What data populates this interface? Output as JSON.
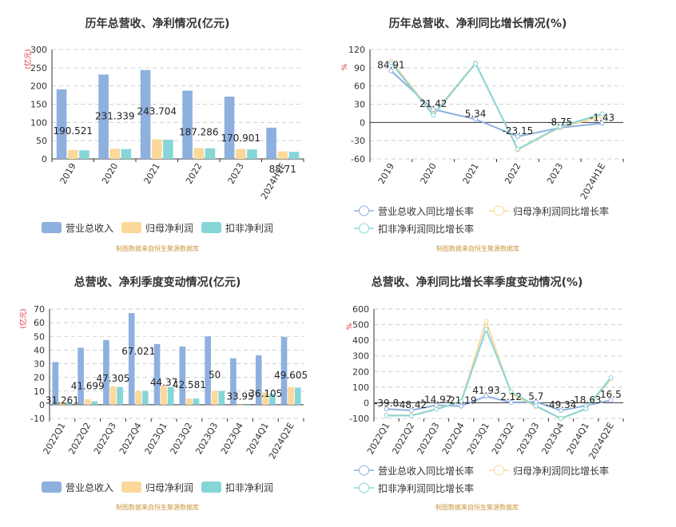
{
  "chart_data": [
    {
      "type": "bar",
      "title": "历年总营收、净利情况(亿元)",
      "ylabel": "(亿元)",
      "ylim": [
        0,
        300
      ],
      "yticks": [
        0,
        50,
        100,
        150,
        200,
        250,
        300
      ],
      "categories": [
        "2019",
        "2020",
        "2021",
        "2022",
        "2023",
        "2024H1E"
      ],
      "series": [
        {
          "name": "营业总收入",
          "color": "#8eb0de",
          "values": [
            190.521,
            231.339,
            243.704,
            187.286,
            170.901,
            85.71
          ]
        },
        {
          "name": "归母净利润",
          "color": "#fcd89b",
          "values": [
            24.5,
            28.0,
            54.0,
            30.0,
            27.0,
            20.5
          ]
        },
        {
          "name": "扣非净利润",
          "color": "#86d6d8",
          "values": [
            23.5,
            27.0,
            52.5,
            29.0,
            26.0,
            19.5
          ]
        }
      ],
      "data_labels": [
        "190.521",
        "231.339",
        "243.704",
        "187.286",
        "170.901",
        "85.71"
      ],
      "grid": true,
      "legend": "bottom",
      "source": "制图数据来自恒生聚源数据库"
    },
    {
      "type": "line",
      "title": "历年总营收、净利同比增长情况(%)",
      "ylabel": "%",
      "ylim": [
        -60,
        120
      ],
      "yticks": [
        -60,
        -30,
        0,
        30,
        60,
        90,
        120
      ],
      "categories": [
        "2019",
        "2020",
        "2021",
        "2022",
        "2023",
        "2024H1E"
      ],
      "series": [
        {
          "name": "营业总收入同比增长率",
          "color": "#8eb0de",
          "values": [
            84.91,
            21.42,
            5.34,
            -23.15,
            -8.75,
            -1.43
          ]
        },
        {
          "name": "归母净利润同比增长率",
          "color": "#fcd89b",
          "values": [
            101,
            14,
            98,
            -45,
            -8,
            10
          ]
        },
        {
          "name": "扣非净利润同比增长率",
          "color": "#86d6d8",
          "values": [
            98,
            12,
            97,
            -44,
            -7,
            14
          ]
        }
      ],
      "data_labels": [
        "84.91",
        "21.42",
        "5.34",
        "-23.15",
        "-8.75",
        "-1.43"
      ],
      "grid": true,
      "legend": "bottom",
      "source": "制图数据来自恒生聚源数据库"
    },
    {
      "type": "bar",
      "title": "总营收、净利季度变动情况(亿元)",
      "ylabel": "(亿元)",
      "ylim": [
        -10,
        70
      ],
      "yticks": [
        -10,
        0,
        10,
        20,
        30,
        40,
        50,
        60,
        70
      ],
      "categories": [
        "2022Q1",
        "2022Q2",
        "2022Q3",
        "2022Q4",
        "2023Q1",
        "2023Q2",
        "2023Q3",
        "2023Q4",
        "2024Q1",
        "2024Q2E"
      ],
      "series": [
        {
          "name": "营业总收入",
          "color": "#8eb0de",
          "values": [
            31.261,
            41.699,
            47.305,
            67.021,
            44.37,
            42.581,
            50,
            33.95,
            36.105,
            49.605
          ]
        },
        {
          "name": "归母净利润",
          "color": "#fcd89b",
          "values": [
            2.0,
            4.0,
            13.5,
            10.0,
            14.0,
            4.5,
            10.0,
            -0.5,
            9.0,
            13.0
          ]
        },
        {
          "name": "扣非净利润",
          "color": "#86d6d8",
          "values": [
            1.8,
            2.5,
            13.0,
            10.0,
            13.0,
            4.5,
            10.0,
            -0.7,
            8.0,
            12.5
          ]
        }
      ],
      "data_labels": [
        "31.261",
        "41.699",
        "47.305",
        "67.021",
        "44.37",
        "42.581",
        "50",
        "33.95",
        "36.105",
        "49.605"
      ],
      "grid": true,
      "legend": "bottom",
      "source": "制图数据来自恒生聚源数据库"
    },
    {
      "type": "line",
      "title": "总营收、净利同比增长率季度变动情况(%)",
      "ylabel": "%",
      "ylim": [
        -100,
        600
      ],
      "yticks": [
        -100,
        0,
        100,
        200,
        300,
        400,
        500,
        600
      ],
      "categories": [
        "2022Q1",
        "2022Q2",
        "2022Q3",
        "2022Q4",
        "2023Q1",
        "2023Q2",
        "2023Q3",
        "2023Q4",
        "2024Q1",
        "2024Q2E"
      ],
      "series": [
        {
          "name": "营业总收入同比增长率",
          "color": "#8eb0de",
          "values": [
            -39.8,
            -48.42,
            -14.97,
            -21.19,
            41.93,
            2.12,
            5.7,
            -49.34,
            -18.63,
            16.5
          ]
        },
        {
          "name": "归母净利润同比增长率",
          "color": "#fcd89b",
          "values": [
            -80,
            -80,
            -40,
            10,
            520,
            60,
            -25,
            -100,
            -40,
            150
          ]
        },
        {
          "name": "扣非净利润同比增长率",
          "color": "#86d6d8",
          "values": [
            -82,
            -82,
            -42,
            8,
            470,
            70,
            -20,
            -100,
            -38,
            160
          ]
        }
      ],
      "data_labels": [
        "-39.8",
        "-48.42",
        "-14.97",
        "-21.19",
        "41.93",
        "2.12",
        "5.7",
        "-49.34",
        "-18.63",
        "16.5"
      ],
      "grid": true,
      "legend": "bottom",
      "source": "制图数据来自恒生聚源数据库"
    }
  ]
}
